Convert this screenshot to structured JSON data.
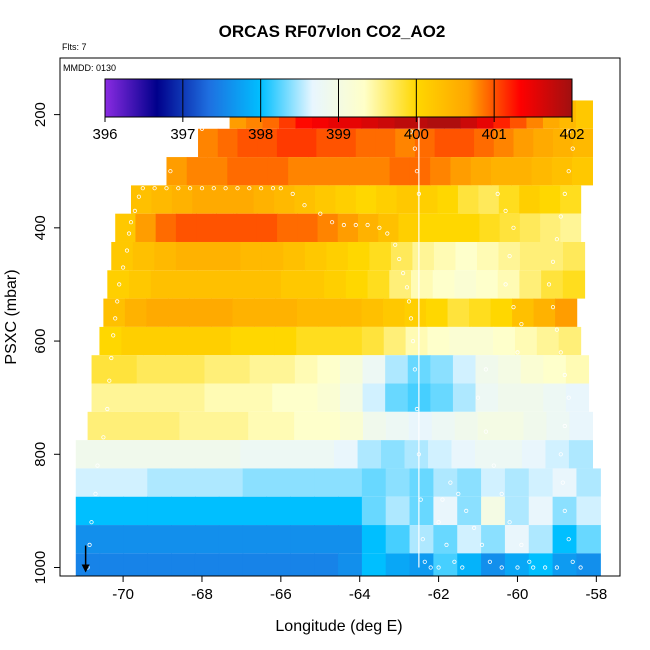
{
  "chart_data": {
    "type": "heatmap",
    "title": "ORCAS RF07vlon CO2_AO2",
    "flights_label": "Flts: 7",
    "date_label": "MMDD: 0130",
    "xlabel": "Longitude (deg E)",
    "ylabel": "PSXC (mbar)",
    "xlim": [
      -71.2,
      -57.6
    ],
    "ylim": [
      1010,
      100
    ],
    "xticks": [
      -70,
      -68,
      -66,
      -64,
      -62,
      -60,
      -58
    ],
    "yticks": [
      200,
      400,
      600,
      800,
      1000
    ],
    "colorbar": {
      "min": 396,
      "max": 402,
      "ticks": [
        396,
        397,
        398,
        399,
        400,
        401,
        402
      ],
      "stops": [
        "#8a2be2",
        "#00008b",
        "#1e6fe0",
        "#00bfff",
        "#e8f6ff",
        "#ffffc8",
        "#ffd700",
        "#ffa500",
        "#ff0000",
        "#a01010"
      ]
    },
    "band_thickness_mbar": 50,
    "bands": [
      {
        "p": 200,
        "x0": -67.3,
        "x1": -58.1,
        "values": [
          400.7,
          400.8,
          400.9,
          401.1,
          401.3,
          401.4,
          401.5,
          401.5,
          401.6,
          401.7,
          401.8,
          401.8,
          401.9,
          401.9,
          401.7,
          401.5,
          401.2,
          401.0,
          400.8,
          400.6,
          400.4,
          400.2
        ]
      },
      {
        "p": 250,
        "x0": -68.1,
        "x1": -58.1,
        "values": [
          400.8,
          400.9,
          401.0,
          401.0,
          401.1,
          401.1,
          401.0,
          401.0,
          400.9,
          400.9,
          400.8,
          400.9,
          401.0,
          401.0,
          400.9,
          400.8,
          400.7,
          400.6,
          400.5,
          400.4
        ]
      },
      {
        "p": 300,
        "x0": -68.9,
        "x1": -58.1,
        "values": [
          400.7,
          400.8,
          400.8,
          400.9,
          400.9,
          400.9,
          400.8,
          400.8,
          400.8,
          400.8,
          400.8,
          400.9,
          400.9,
          400.8,
          400.7,
          400.6,
          400.5,
          400.5,
          400.4,
          400.3,
          400.2
        ]
      },
      {
        "p": 350,
        "x0": -69.8,
        "x1": -58.4,
        "values": [
          400.3,
          400.4,
          400.5,
          400.6,
          400.6,
          400.6,
          400.5,
          400.4,
          400.3,
          400.2,
          400.1,
          400.0,
          400.1,
          400.2,
          400.1,
          400.0,
          399.8,
          399.7,
          399.9,
          400.1,
          400.0,
          399.9
        ]
      },
      {
        "p": 400,
        "x0": -70.2,
        "x1": -58.4,
        "values": [
          400.2,
          400.7,
          400.9,
          401.0,
          401.0,
          401.0,
          401.0,
          401.0,
          400.9,
          400.9,
          400.8,
          400.7,
          400.5,
          400.3,
          400.1,
          400.0,
          400.0,
          400.0,
          399.9,
          399.8,
          399.7,
          399.6,
          399.5
        ]
      },
      {
        "p": 450,
        "x0": -70.3,
        "x1": -58.3,
        "values": [
          400.2,
          400.3,
          400.4,
          400.5,
          400.5,
          400.5,
          400.4,
          400.4,
          400.3,
          400.2,
          400.1,
          400.0,
          399.9,
          399.7,
          399.5,
          399.4,
          399.3,
          399.4,
          399.5,
          399.6,
          399.6,
          399.7
        ]
      },
      {
        "p": 500,
        "x0": -70.4,
        "x1": -58.3,
        "values": [
          400.1,
          400.2,
          400.3,
          400.3,
          400.3,
          400.3,
          400.3,
          400.3,
          400.2,
          400.2,
          400.1,
          400.0,
          399.9,
          399.6,
          399.4,
          399.3,
          399.2,
          399.3,
          399.4,
          399.6,
          399.8,
          399.9
        ]
      },
      {
        "p": 550,
        "x0": -70.5,
        "x1": -58.5,
        "values": [
          400.3,
          400.5,
          400.6,
          400.6,
          400.6,
          400.6,
          400.5,
          400.5,
          400.5,
          400.4,
          400.4,
          400.4,
          400.3,
          400.2,
          400.1,
          400.0,
          399.8,
          399.9,
          400.0,
          400.3,
          400.5,
          400.7
        ]
      },
      {
        "p": 600,
        "x0": -70.6,
        "x1": -58.4,
        "values": [
          400.0,
          400.1,
          400.1,
          400.1,
          400.1,
          400.1,
          400.0,
          400.0,
          400.0,
          399.9,
          399.9,
          399.9,
          399.8,
          399.6,
          399.4,
          399.3,
          399.2,
          399.2,
          399.3,
          399.4,
          399.5,
          399.6
        ]
      },
      {
        "p": 650,
        "x0": -70.8,
        "x1": -58.2,
        "values": [
          399.8,
          399.8,
          399.7,
          399.7,
          399.7,
          399.6,
          399.6,
          399.5,
          399.5,
          399.4,
          399.3,
          399.1,
          398.8,
          398.5,
          398.3,
          398.4,
          398.6,
          398.9,
          399.0,
          399.2,
          399.3,
          399.4
        ]
      },
      {
        "p": 700,
        "x0": -70.8,
        "x1": -58.2,
        "values": [
          399.5,
          399.5,
          399.5,
          399.5,
          399.5,
          399.4,
          399.4,
          399.4,
          399.3,
          399.3,
          399.2,
          399.0,
          398.6,
          398.3,
          398.2,
          398.3,
          398.5,
          398.8,
          398.9,
          398.9,
          398.8,
          398.7
        ]
      },
      {
        "p": 750,
        "x0": -70.9,
        "x1": -58.1,
        "values": [
          399.6,
          399.6,
          399.6,
          399.6,
          399.5,
          399.5,
          399.5,
          399.4,
          399.4,
          399.3,
          399.3,
          399.2,
          398.9,
          398.8,
          398.7,
          398.8,
          398.9,
          399.0,
          399.0,
          398.9,
          398.8,
          398.7
        ]
      },
      {
        "p": 800,
        "x0": -71.2,
        "x1": -58.1,
        "values": [
          398.9,
          398.9,
          398.9,
          398.9,
          398.9,
          398.9,
          398.9,
          398.8,
          398.8,
          398.8,
          398.8,
          398.7,
          398.5,
          398.4,
          398.5,
          398.6,
          398.7,
          398.8,
          398.8,
          398.7,
          398.6,
          398.5
        ]
      },
      {
        "p": 850,
        "x0": -71.2,
        "x1": -57.9,
        "values": [
          398.6,
          398.6,
          398.6,
          398.5,
          398.5,
          398.5,
          398.5,
          398.4,
          398.4,
          398.4,
          398.4,
          398.4,
          398.3,
          398.4,
          398.3,
          398.5,
          398.4,
          398.6,
          398.5,
          398.6,
          398.7,
          398.5
        ]
      },
      {
        "p": 900,
        "x0": -71.2,
        "x1": -57.9,
        "values": [
          398.0,
          398.0,
          398.0,
          398.0,
          398.0,
          398.0,
          398.0,
          398.0,
          398.0,
          398.0,
          398.0,
          398.0,
          398.3,
          398.5,
          398.3,
          398.7,
          398.4,
          399.0,
          398.5,
          398.7,
          398.4,
          398.6
        ]
      },
      {
        "p": 950,
        "x0": -71.2,
        "x1": -57.9,
        "values": [
          397.6,
          397.6,
          397.6,
          397.6,
          397.6,
          397.6,
          397.6,
          397.6,
          397.6,
          397.6,
          397.6,
          397.6,
          398.0,
          398.2,
          398.5,
          398.3,
          398.6,
          398.4,
          398.7,
          398.5,
          398.0,
          398.3
        ]
      },
      {
        "p": 1000,
        "x0": -71.2,
        "x1": -57.9,
        "values": [
          397.5,
          397.5,
          397.5,
          397.5,
          397.5,
          397.5,
          397.5,
          397.5,
          397.5,
          397.5,
          397.5,
          397.6,
          398.0,
          397.8,
          397.7,
          398.2,
          397.9,
          397.6,
          397.8,
          398.0,
          397.7,
          397.6
        ]
      }
    ],
    "divider_lon": -62.5,
    "flight_track": [
      [
        -70.9,
        1000
      ],
      [
        -70.85,
        960
      ],
      [
        -70.8,
        920
      ],
      [
        -70.7,
        870
      ],
      [
        -70.65,
        820
      ],
      [
        -70.5,
        770
      ],
      [
        -70.4,
        720
      ],
      [
        -70.35,
        670
      ],
      [
        -70.3,
        630
      ],
      [
        -70.25,
        590
      ],
      [
        -70.2,
        560
      ],
      [
        -70.15,
        530
      ],
      [
        -70.1,
        500
      ],
      [
        -70.0,
        470
      ],
      [
        -69.9,
        440
      ],
      [
        -69.85,
        410
      ],
      [
        -69.8,
        390
      ],
      [
        -69.7,
        370
      ],
      [
        -69.6,
        345
      ],
      [
        -69.5,
        330
      ],
      [
        -69.2,
        330
      ],
      [
        -68.9,
        330
      ],
      [
        -68.6,
        330
      ],
      [
        -68.3,
        330
      ],
      [
        -68.0,
        330
      ],
      [
        -67.7,
        330
      ],
      [
        -67.4,
        330
      ],
      [
        -67.1,
        330
      ],
      [
        -66.8,
        330
      ],
      [
        -66.5,
        330
      ],
      [
        -66.2,
        330
      ],
      [
        -66.0,
        330
      ],
      [
        -65.7,
        340
      ],
      [
        -65.4,
        360
      ],
      [
        -65.0,
        375
      ],
      [
        -64.7,
        390
      ],
      [
        -64.4,
        395
      ],
      [
        -64.1,
        395
      ],
      [
        -63.8,
        395
      ],
      [
        -63.5,
        400
      ],
      [
        -63.3,
        410
      ],
      [
        -63.1,
        430
      ],
      [
        -63.0,
        455
      ],
      [
        -62.9,
        480
      ],
      [
        -62.8,
        505
      ],
      [
        -62.75,
        530
      ],
      [
        -62.7,
        560
      ],
      [
        -62.65,
        600
      ],
      [
        -62.6,
        650
      ],
      [
        -62.55,
        720
      ],
      [
        -62.5,
        800
      ],
      [
        -62.45,
        880
      ],
      [
        -62.4,
        950
      ],
      [
        -62.35,
        990
      ],
      [
        -62.2,
        1000
      ],
      [
        -62.0,
        1000
      ],
      [
        -68.8,
        300
      ],
      [
        -68.6,
        270
      ],
      [
        -68.3,
        245
      ],
      [
        -68.0,
        225
      ],
      [
        -67.7,
        205
      ],
      [
        -67.4,
        190
      ],
      [
        -67.1,
        185
      ],
      [
        -66.8,
        182
      ],
      [
        -66.5,
        180
      ],
      [
        -66.2,
        180
      ],
      [
        -63.0,
        190
      ],
      [
        -62.8,
        200
      ],
      [
        -62.7,
        230
      ],
      [
        -62.6,
        260
      ],
      [
        -62.55,
        300
      ],
      [
        -62.5,
        340
      ],
      [
        -62.3,
        185
      ],
      [
        -62.0,
        185
      ],
      [
        -61.7,
        185
      ],
      [
        -61.4,
        185
      ],
      [
        -61.1,
        185
      ],
      [
        -60.8,
        185
      ],
      [
        -60.5,
        185
      ],
      [
        -60.2,
        185
      ],
      [
        -59.6,
        185
      ],
      [
        -59.3,
        185
      ],
      [
        -59.0,
        185
      ],
      [
        -58.8,
        200
      ],
      [
        -58.7,
        230
      ],
      [
        -58.6,
        260
      ],
      [
        -58.7,
        300
      ],
      [
        -58.8,
        340
      ],
      [
        -58.9,
        380
      ],
      [
        -59.0,
        420
      ],
      [
        -59.1,
        460
      ],
      [
        -59.2,
        500
      ],
      [
        -59.1,
        540
      ],
      [
        -59.0,
        580
      ],
      [
        -58.9,
        620
      ],
      [
        -58.8,
        660
      ],
      [
        -58.7,
        700
      ],
      [
        -58.8,
        750
      ],
      [
        -58.9,
        800
      ],
      [
        -58.85,
        850
      ],
      [
        -58.8,
        900
      ],
      [
        -58.7,
        950
      ],
      [
        -58.6,
        990
      ],
      [
        -58.4,
        1000
      ],
      [
        -59.0,
        1000
      ],
      [
        -59.3,
        1000
      ],
      [
        -59.6,
        1000
      ],
      [
        -60.0,
        1000
      ],
      [
        -60.4,
        1000
      ],
      [
        -60.7,
        990
      ],
      [
        -60.9,
        960
      ],
      [
        -61.1,
        930
      ],
      [
        -61.3,
        900
      ],
      [
        -61.5,
        870
      ],
      [
        -61.7,
        850
      ],
      [
        -61.9,
        880
      ],
      [
        -62.0,
        920
      ],
      [
        -61.8,
        960
      ],
      [
        -61.6,
        990
      ],
      [
        -61.4,
        1000
      ],
      [
        -60.5,
        340
      ],
      [
        -60.3,
        370
      ],
      [
        -60.1,
        400
      ],
      [
        -60.2,
        450
      ],
      [
        -60.3,
        500
      ],
      [
        -60.1,
        540
      ],
      [
        -59.9,
        570
      ],
      [
        -60.0,
        620
      ],
      [
        -60.8,
        650
      ],
      [
        -61.0,
        700
      ],
      [
        -60.8,
        760
      ],
      [
        -60.6,
        820
      ],
      [
        -60.4,
        870
      ],
      [
        -60.2,
        920
      ],
      [
        -59.9,
        960
      ],
      [
        -59.7,
        990
      ]
    ],
    "marker": {
      "lon": -70.95,
      "p": 1000,
      "symbol": "arrow-down"
    }
  }
}
